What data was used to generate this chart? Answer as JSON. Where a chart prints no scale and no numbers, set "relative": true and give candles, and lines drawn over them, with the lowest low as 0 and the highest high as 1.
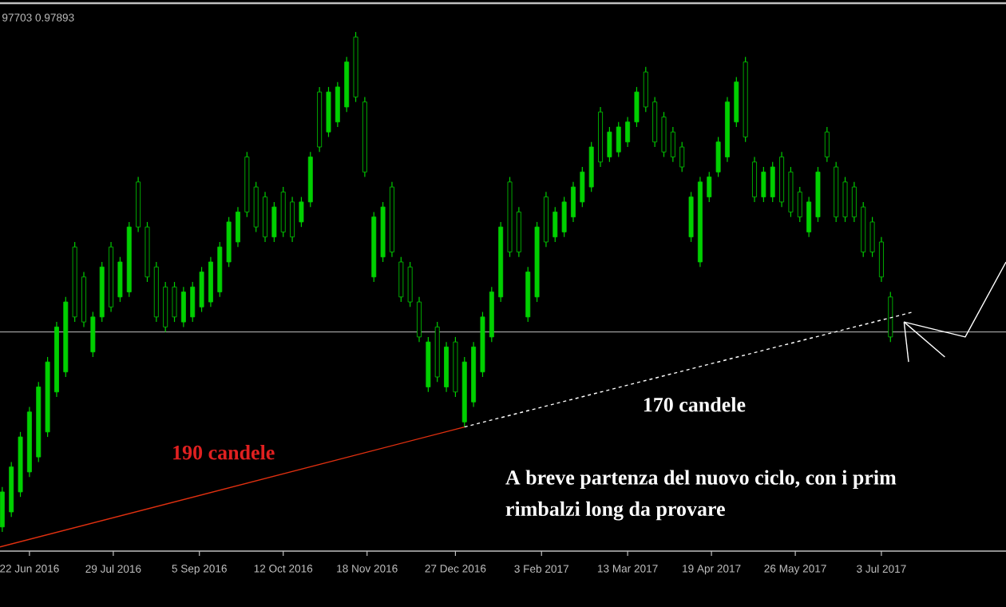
{
  "chart_data": {
    "type": "candlestick",
    "relative": true,
    "title": "97703 0.97893",
    "color": "#00d000",
    "xlim": [
      "2016-06-09",
      "2017-08-27"
    ],
    "xticks": [
      {
        "value": "2016-06-22",
        "label": "22 Jun 2016"
      },
      {
        "value": "2016-07-29",
        "label": "29 Jul 2016"
      },
      {
        "value": "2016-09-05",
        "label": "5 Sep 2016"
      },
      {
        "value": "2016-10-12",
        "label": "12 Oct 2016"
      },
      {
        "value": "2016-11-18",
        "label": "18 Nov 2016"
      },
      {
        "value": "2016-12-27",
        "label": "27 Dec 2016"
      },
      {
        "value": "2017-02-03",
        "label": "3 Feb 2017"
      },
      {
        "value": "2017-03-13",
        "label": "13 Mar 2017"
      },
      {
        "value": "2017-04-19",
        "label": "19 Apr 2017"
      },
      {
        "value": "2017-05-26",
        "label": "26 May 2017"
      },
      {
        "value": "2017-07-03",
        "label": "3 Jul 2017"
      }
    ],
    "x": [
      "2016-06-10",
      "2016-06-14",
      "2016-06-18",
      "2016-06-22",
      "2016-06-26",
      "2016-06-30",
      "2016-07-04",
      "2016-07-08",
      "2016-07-12",
      "2016-07-16",
      "2016-07-20",
      "2016-07-24",
      "2016-07-28",
      "2016-08-01",
      "2016-08-05",
      "2016-08-09",
      "2016-08-13",
      "2016-08-17",
      "2016-08-21",
      "2016-08-25",
      "2016-08-29",
      "2016-09-02",
      "2016-09-06",
      "2016-09-10",
      "2016-09-14",
      "2016-09-18",
      "2016-09-22",
      "2016-09-26",
      "2016-09-30",
      "2016-10-04",
      "2016-10-08",
      "2016-10-12",
      "2016-10-16",
      "2016-10-20",
      "2016-10-24",
      "2016-10-28",
      "2016-11-01",
      "2016-11-05",
      "2016-11-09",
      "2016-11-13",
      "2016-11-17",
      "2016-11-21",
      "2016-11-25",
      "2016-11-29",
      "2016-12-03",
      "2016-12-07",
      "2016-12-11",
      "2016-12-15",
      "2016-12-19",
      "2016-12-23",
      "2016-12-27",
      "2016-12-31",
      "2017-01-04",
      "2017-01-08",
      "2017-01-12",
      "2017-01-16",
      "2017-01-20",
      "2017-01-24",
      "2017-01-28",
      "2017-02-01",
      "2017-02-05",
      "2017-02-09",
      "2017-02-13",
      "2017-02-17",
      "2017-02-21",
      "2017-02-25",
      "2017-03-01",
      "2017-03-05",
      "2017-03-09",
      "2017-03-13",
      "2017-03-17",
      "2017-03-21",
      "2017-03-25",
      "2017-03-29",
      "2017-04-02",
      "2017-04-06",
      "2017-04-10",
      "2017-04-14",
      "2017-04-18",
      "2017-04-22",
      "2017-04-26",
      "2017-04-30",
      "2017-05-04",
      "2017-05-08",
      "2017-05-12",
      "2017-05-16",
      "2017-05-20",
      "2017-05-24",
      "2017-05-28",
      "2017-06-01",
      "2017-06-05",
      "2017-06-09",
      "2017-06-13",
      "2017-06-17",
      "2017-06-21",
      "2017-06-25",
      "2017-06-29",
      "2017-07-03",
      "2017-07-07"
    ],
    "ohlc": [
      [
        0.01,
        0.09,
        0.0,
        0.08
      ],
      [
        0.04,
        0.14,
        0.03,
        0.13
      ],
      [
        0.08,
        0.2,
        0.07,
        0.19
      ],
      [
        0.12,
        0.25,
        0.11,
        0.24
      ],
      [
        0.15,
        0.3,
        0.14,
        0.29
      ],
      [
        0.2,
        0.35,
        0.19,
        0.34
      ],
      [
        0.28,
        0.42,
        0.27,
        0.41
      ],
      [
        0.32,
        0.47,
        0.31,
        0.46
      ],
      [
        0.57,
        0.58,
        0.42,
        0.43
      ],
      [
        0.51,
        0.52,
        0.41,
        0.42
      ],
      [
        0.36,
        0.44,
        0.35,
        0.43
      ],
      [
        0.43,
        0.54,
        0.42,
        0.53
      ],
      [
        0.57,
        0.58,
        0.44,
        0.45
      ],
      [
        0.47,
        0.55,
        0.46,
        0.54
      ],
      [
        0.48,
        0.62,
        0.47,
        0.61
      ],
      [
        0.7,
        0.71,
        0.6,
        0.61
      ],
      [
        0.61,
        0.62,
        0.5,
        0.51
      ],
      [
        0.53,
        0.54,
        0.42,
        0.43
      ],
      [
        0.49,
        0.5,
        0.4,
        0.41
      ],
      [
        0.49,
        0.5,
        0.42,
        0.43
      ],
      [
        0.42,
        0.49,
        0.41,
        0.48
      ],
      [
        0.43,
        0.5,
        0.42,
        0.49
      ],
      [
        0.45,
        0.53,
        0.44,
        0.52
      ],
      [
        0.46,
        0.55,
        0.45,
        0.54
      ],
      [
        0.48,
        0.58,
        0.47,
        0.57
      ],
      [
        0.54,
        0.63,
        0.53,
        0.62
      ],
      [
        0.58,
        0.65,
        0.57,
        0.64
      ],
      [
        0.75,
        0.76,
        0.63,
        0.64
      ],
      [
        0.69,
        0.7,
        0.6,
        0.61
      ],
      [
        0.67,
        0.68,
        0.58,
        0.59
      ],
      [
        0.59,
        0.66,
        0.58,
        0.65
      ],
      [
        0.68,
        0.69,
        0.59,
        0.6
      ],
      [
        0.66,
        0.67,
        0.58,
        0.59
      ],
      [
        0.62,
        0.67,
        0.61,
        0.66
      ],
      [
        0.66,
        0.76,
        0.65,
        0.75
      ],
      [
        0.88,
        0.89,
        0.76,
        0.77
      ],
      [
        0.8,
        0.89,
        0.79,
        0.88
      ],
      [
        0.82,
        0.9,
        0.81,
        0.89
      ],
      [
        0.85,
        0.95,
        0.84,
        0.94
      ],
      [
        0.99,
        1.0,
        0.86,
        0.87
      ],
      [
        0.86,
        0.87,
        0.71,
        0.72
      ],
      [
        0.51,
        0.64,
        0.5,
        0.63
      ],
      [
        0.55,
        0.66,
        0.54,
        0.65
      ],
      [
        0.69,
        0.7,
        0.55,
        0.56
      ],
      [
        0.54,
        0.55,
        0.46,
        0.47
      ],
      [
        0.53,
        0.54,
        0.45,
        0.46
      ],
      [
        0.46,
        0.47,
        0.38,
        0.39
      ],
      [
        0.29,
        0.39,
        0.28,
        0.38
      ],
      [
        0.41,
        0.42,
        0.3,
        0.31
      ],
      [
        0.29,
        0.38,
        0.28,
        0.37
      ],
      [
        0.38,
        0.39,
        0.27,
        0.28
      ],
      [
        0.22,
        0.35,
        0.21,
        0.34
      ],
      [
        0.26,
        0.38,
        0.25,
        0.37
      ],
      [
        0.32,
        0.44,
        0.31,
        0.43
      ],
      [
        0.39,
        0.49,
        0.38,
        0.48
      ],
      [
        0.47,
        0.62,
        0.46,
        0.61
      ],
      [
        0.7,
        0.71,
        0.55,
        0.56
      ],
      [
        0.64,
        0.65,
        0.55,
        0.56
      ],
      [
        0.43,
        0.53,
        0.42,
        0.52
      ],
      [
        0.47,
        0.62,
        0.46,
        0.61
      ],
      [
        0.67,
        0.68,
        0.57,
        0.58
      ],
      [
        0.59,
        0.65,
        0.58,
        0.64
      ],
      [
        0.6,
        0.67,
        0.59,
        0.66
      ],
      [
        0.63,
        0.7,
        0.62,
        0.69
      ],
      [
        0.66,
        0.73,
        0.65,
        0.72
      ],
      [
        0.69,
        0.78,
        0.68,
        0.77
      ],
      [
        0.84,
        0.85,
        0.73,
        0.74
      ],
      [
        0.75,
        0.81,
        0.74,
        0.8
      ],
      [
        0.76,
        0.82,
        0.75,
        0.81
      ],
      [
        0.78,
        0.83,
        0.77,
        0.82
      ],
      [
        0.82,
        0.89,
        0.81,
        0.88
      ],
      [
        0.92,
        0.93,
        0.84,
        0.85
      ],
      [
        0.86,
        0.87,
        0.77,
        0.78
      ],
      [
        0.83,
        0.84,
        0.75,
        0.76
      ],
      [
        0.8,
        0.81,
        0.74,
        0.75
      ],
      [
        0.77,
        0.78,
        0.72,
        0.73
      ],
      [
        0.59,
        0.68,
        0.58,
        0.67
      ],
      [
        0.54,
        0.71,
        0.53,
        0.7
      ],
      [
        0.67,
        0.72,
        0.66,
        0.71
      ],
      [
        0.72,
        0.79,
        0.71,
        0.78
      ],
      [
        0.75,
        0.87,
        0.74,
        0.86
      ],
      [
        0.82,
        0.91,
        0.81,
        0.9
      ],
      [
        0.94,
        0.95,
        0.78,
        0.79
      ],
      [
        0.74,
        0.75,
        0.66,
        0.67
      ],
      [
        0.67,
        0.73,
        0.66,
        0.72
      ],
      [
        0.67,
        0.74,
        0.66,
        0.73
      ],
      [
        0.75,
        0.76,
        0.65,
        0.66
      ],
      [
        0.72,
        0.73,
        0.63,
        0.64
      ],
      [
        0.68,
        0.69,
        0.62,
        0.63
      ],
      [
        0.6,
        0.67,
        0.59,
        0.66
      ],
      [
        0.63,
        0.73,
        0.62,
        0.72
      ],
      [
        0.8,
        0.81,
        0.74,
        0.75
      ],
      [
        0.73,
        0.74,
        0.62,
        0.63
      ],
      [
        0.7,
        0.71,
        0.62,
        0.63
      ],
      [
        0.69,
        0.7,
        0.62,
        0.63
      ],
      [
        0.65,
        0.66,
        0.55,
        0.56
      ],
      [
        0.62,
        0.63,
        0.55,
        0.56
      ],
      [
        0.58,
        0.59,
        0.5,
        0.51
      ],
      [
        0.47,
        0.48,
        0.38,
        0.39
      ]
    ],
    "series": [
      {
        "type": "line",
        "color": "#e03010",
        "line_style": "solid",
        "x": [
          "2016-06-09",
          "2016-12-31"
        ],
        "values": [
          -0.03,
          0.21
        ]
      },
      {
        "type": "line",
        "color": "#ffffff",
        "line_style": "dashed",
        "x": [
          "2016-12-31",
          "2017-07-17"
        ],
        "values": [
          0.21,
          0.44
        ]
      },
      {
        "type": "line",
        "color": "#ffffff",
        "line_style": "solid",
        "x": [
          "2017-07-13",
          "2017-08-09",
          "2017-08-27"
        ],
        "values": [
          0.42,
          0.39,
          0.54
        ]
      },
      {
        "type": "line",
        "color": "#ffffff",
        "line_style": "solid",
        "x": [
          "2017-07-13",
          "2017-07-15"
        ],
        "values": [
          0.42,
          0.34
        ]
      },
      {
        "type": "line",
        "color": "#ffffff",
        "line_style": "solid",
        "x": [
          "2017-07-13",
          "2017-07-31"
        ],
        "values": [
          0.42,
          0.35
        ]
      }
    ],
    "ref_lines": [
      {
        "axis": "y",
        "value": 0.4,
        "color": "#c0c0c0"
      }
    ],
    "annotations": [
      "190 candele",
      "170 candele",
      "A breve partenza del nuovo ciclo, con i prim",
      "rimbalzi long da provare"
    ]
  }
}
